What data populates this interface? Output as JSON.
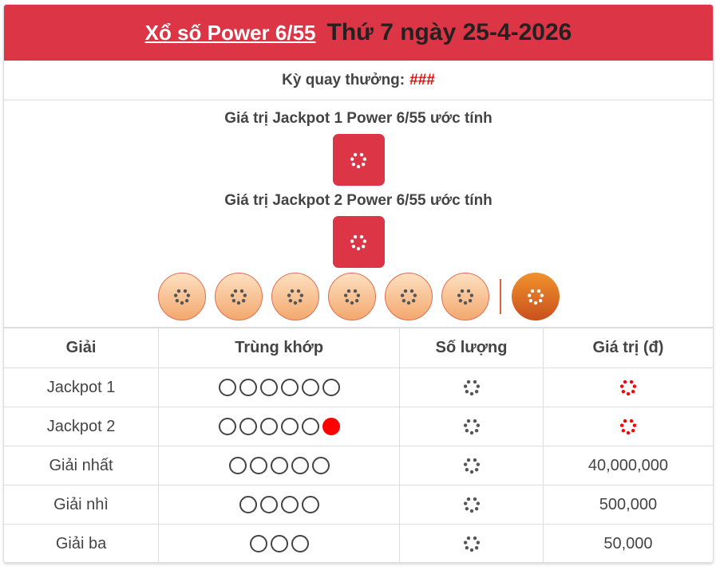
{
  "header": {
    "game_link": "Xổ số Power 6/55",
    "date": "Thứ 7 ngày 25-4-2026",
    "bg_color": "#dc3545"
  },
  "draw": {
    "label": "Kỳ quay thưởng:",
    "value": "###"
  },
  "jackpots": [
    {
      "title": "Giá trị Jackpot 1 Power 6/55 ước tính",
      "status": "loading"
    },
    {
      "title": "Giá trị Jackpot 2 Power 6/55 ước tính",
      "status": "loading"
    }
  ],
  "balls": {
    "main_count": 6,
    "power_count": 1,
    "status": "loading"
  },
  "table": {
    "headers": [
      "Giải",
      "Trùng khớp",
      "Số lượng",
      "Giá trị (đ)"
    ],
    "rows": [
      {
        "prize": "Jackpot 1",
        "match": 6,
        "power": false,
        "count": "loading",
        "value": "loading",
        "value_color": "#ff0000"
      },
      {
        "prize": "Jackpot 2",
        "match": 5,
        "power": true,
        "count": "loading",
        "value": "loading",
        "value_color": "#ff0000"
      },
      {
        "prize": "Giải nhất",
        "match": 5,
        "power": false,
        "count": "loading",
        "value": "40,000,000"
      },
      {
        "prize": "Giải nhì",
        "match": 4,
        "power": false,
        "count": "loading",
        "value": "500,000"
      },
      {
        "prize": "Giải ba",
        "match": 3,
        "power": false,
        "count": "loading",
        "value": "50,000"
      }
    ]
  }
}
